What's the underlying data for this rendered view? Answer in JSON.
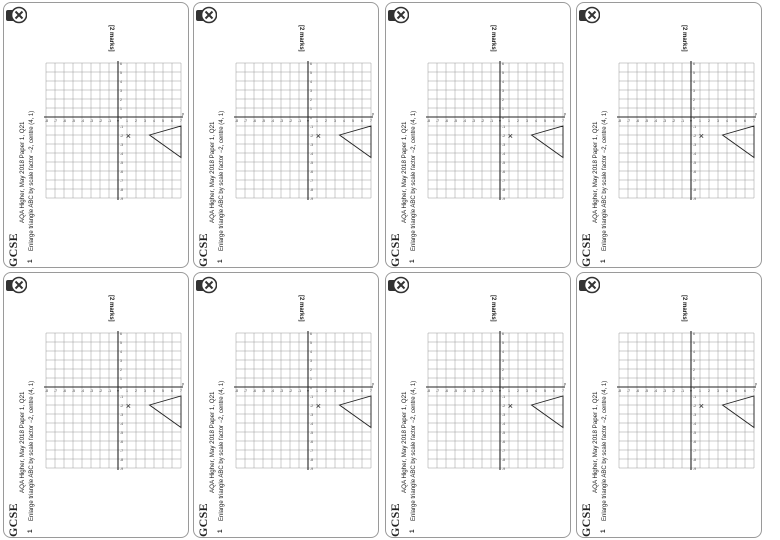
{
  "card": {
    "gcse": "GCSE",
    "source": "AQA Higher, May 2018 Paper 1, Q21",
    "qnum": "1",
    "question": "Enlarge triangle ABC by scale factor −2, centre (4, 1)",
    "marks": "[2 marks]",
    "centre_marker": "×",
    "axis_x": "x",
    "axis_y": "y",
    "icon": "maths-genie-x-logo-icon"
  },
  "cards": [
    {
      "id": "c1",
      "col": 0,
      "row": 0
    },
    {
      "id": "c2",
      "col": 1,
      "row": 0
    },
    {
      "id": "c3",
      "col": 2,
      "row": 0
    },
    {
      "id": "c4",
      "col": 3,
      "row": 0
    },
    {
      "id": "c5",
      "col": 0,
      "row": 1
    },
    {
      "id": "c6",
      "col": 1,
      "row": 1
    },
    {
      "id": "c7",
      "col": 2,
      "row": 1
    },
    {
      "id": "c8",
      "col": 3,
      "row": 1
    }
  ]
}
